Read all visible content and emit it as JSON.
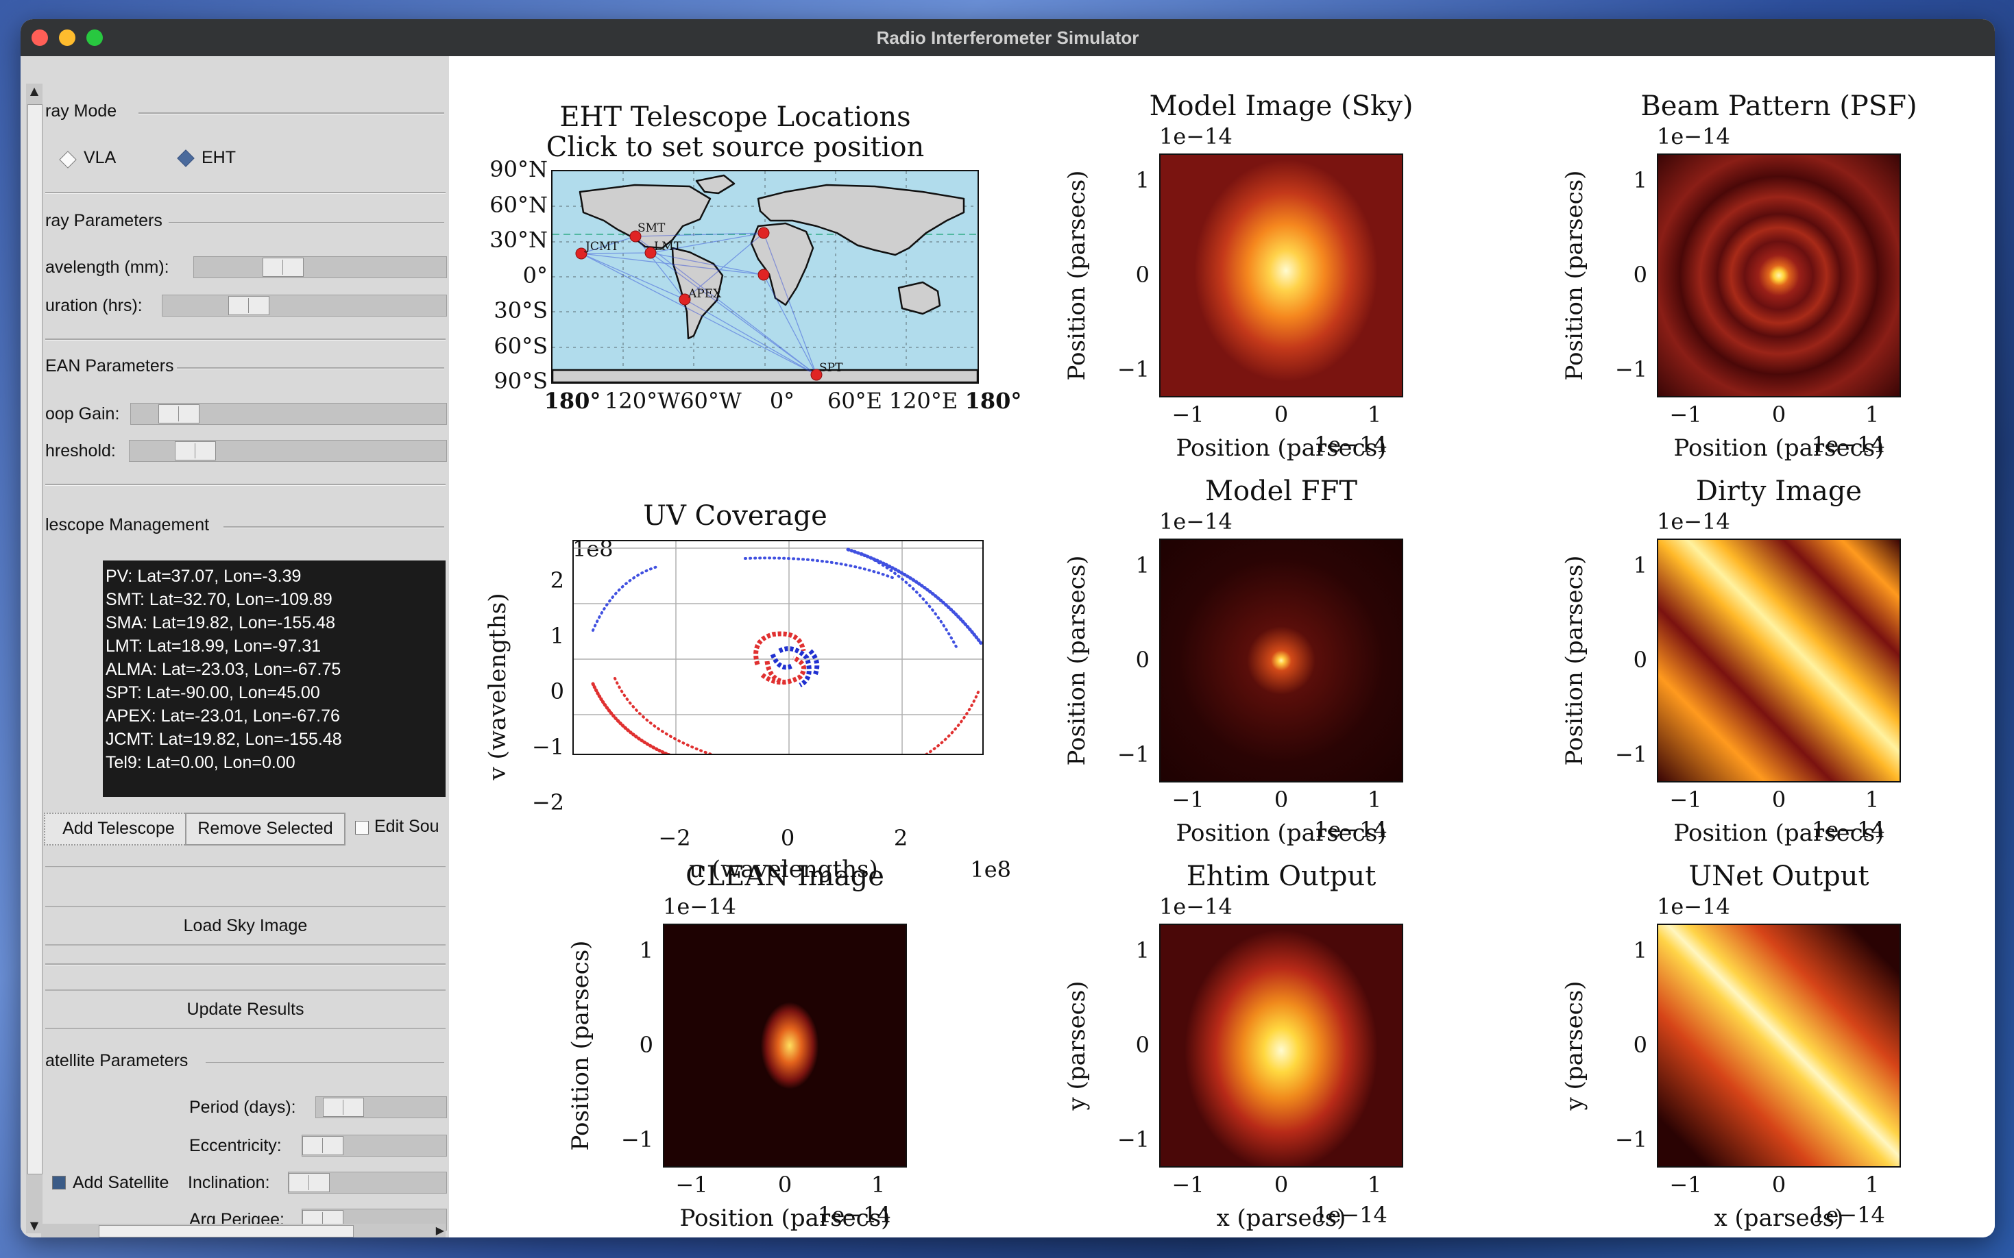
{
  "window": {
    "title": "Radio Interferometer Simulator"
  },
  "sidebar": {
    "array_mode": {
      "label": "ray Mode",
      "options": [
        "VLA",
        "EHT"
      ],
      "selected": "EHT"
    },
    "array_params": {
      "label": "ray Parameters",
      "wavelength_label": "avelength (mm):",
      "duration_label": "uration (hrs):"
    },
    "clean_params": {
      "label": "EAN Parameters",
      "loop_gain_label": "oop Gain:",
      "threshold_label": "hreshold:"
    },
    "telescope_mgmt": {
      "label": "lescope Management",
      "telescopes": [
        "PV: Lat=37.07, Lon=-3.39",
        "SMT: Lat=32.70, Lon=-109.89",
        "SMA: Lat=19.82, Lon=-155.48",
        "LMT: Lat=18.99, Lon=-97.31",
        "ALMA: Lat=-23.03, Lon=-67.75",
        "SPT: Lat=-90.00, Lon=45.00",
        "APEX: Lat=-23.01, Lon=-67.76",
        "JCMT: Lat=19.82, Lon=-155.48",
        "Tel9: Lat=0.00, Lon=0.00"
      ],
      "add_button": "Add Telescope",
      "remove_button": "Remove Selected",
      "edit_checkbox": "Edit Sou"
    },
    "load_sky_button": "Load Sky Image",
    "update_button": "Update Results",
    "satellite": {
      "label": "atellite Parameters",
      "period_label": "Period (days):",
      "eccentricity_label": "Eccentricity:",
      "add_satellite_label": "Add Satellite",
      "inclination_label": "Inclination:",
      "arg_perigee_label": "Arg Perigee:"
    }
  },
  "plots": {
    "map": {
      "title_line1": "EHT Telescope Locations",
      "title_line2": "Click to set source position",
      "lat_ticks": [
        "90°N",
        "60°N",
        "30°N",
        "0°",
        "30°S",
        "60°S",
        "90°S"
      ],
      "lon_ticks": [
        "180°",
        "120°W",
        "60°W",
        "0°",
        "60°E",
        "120°E",
        "180°"
      ],
      "site_labels": [
        "SMT",
        "JCMT",
        "LMT",
        "APEX",
        "SPT"
      ]
    },
    "uv": {
      "title": "UV Coverage",
      "xlabel": "u (wavelengths)",
      "ylabel": "v (wavelengths)",
      "x_offset": "1e8",
      "y_offset": "1e8",
      "x_ticks": [
        "−2",
        "0",
        "2"
      ],
      "y_ticks": [
        "2",
        "1",
        "0",
        "−1",
        "−2"
      ]
    },
    "images": [
      {
        "title": "Model Image (Sky)",
        "xlabel": "Position (parsecs)",
        "ylabel": "Position (parsecs)",
        "offset": "1e−14",
        "x_offset": "1e−14"
      },
      {
        "title": "Beam Pattern (PSF)",
        "xlabel": "Position (parsecs)",
        "ylabel": "Position (parsecs)",
        "offset": "1e−14",
        "x_offset": "1e−14"
      },
      {
        "title": "Model FFT",
        "xlabel": "Position (parsecs)",
        "ylabel": "Position (parsecs)",
        "offset": "1e−14",
        "x_offset": "1e−14"
      },
      {
        "title": "Dirty Image",
        "xlabel": "Position (parsecs)",
        "ylabel": "Position (parsecs)",
        "offset": "1e−14",
        "x_offset": "1e−14"
      },
      {
        "title": "CLEAN Image",
        "xlabel": "Position (parsecs)",
        "ylabel": "Position (parsecs)",
        "offset": "1e−14",
        "x_offset": "1e−14"
      },
      {
        "title": "Ehtim Output",
        "xlabel": "x (parsecs)",
        "ylabel": "y (parsecs)",
        "offset": "1e−14",
        "x_offset": "1e−14"
      },
      {
        "title": "UNet Output",
        "xlabel": "x (parsecs)",
        "ylabel": "y (parsecs)",
        "offset": "1e−14",
        "x_offset": "1e−14"
      }
    ],
    "image_x_ticks": [
      "−1",
      "0",
      "1"
    ],
    "image_y_ticks": [
      "1",
      "0",
      "−1"
    ]
  }
}
